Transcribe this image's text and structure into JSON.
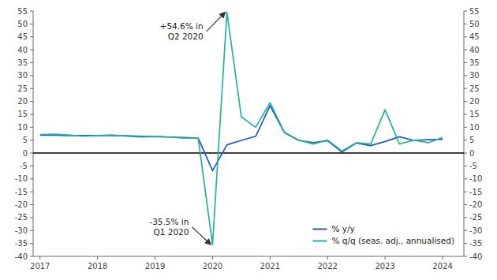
{
  "chart_data": {
    "type": "line",
    "x": [
      2017.0,
      2017.25,
      2017.5,
      2017.75,
      2018.0,
      2018.25,
      2018.5,
      2018.75,
      2019.0,
      2019.25,
      2019.5,
      2019.75,
      2020.0,
      2020.25,
      2020.5,
      2020.75,
      2021.0,
      2021.25,
      2021.5,
      2021.75,
      2022.0,
      2022.25,
      2022.5,
      2022.75,
      2023.0,
      2023.25,
      2023.5,
      2023.75,
      2024.0
    ],
    "series": [
      {
        "name": "% y/y",
        "color": "#1959c8",
        "values": [
          6.9,
          6.9,
          6.8,
          6.8,
          6.8,
          6.8,
          6.7,
          6.5,
          6.4,
          6.2,
          6.0,
          5.8,
          -6.8,
          3.2,
          4.9,
          6.5,
          18.3,
          7.9,
          4.9,
          4.0,
          4.8,
          0.4,
          3.9,
          2.9,
          4.5,
          6.3,
          4.9,
          5.2,
          5.3
        ]
      },
      {
        "name": "% q/q (seas. adj., annualised)",
        "color": "#25b0a0",
        "values": [
          7.2,
          7.3,
          7.0,
          6.5,
          6.8,
          7.0,
          6.5,
          6.2,
          6.4,
          6.2,
          5.8,
          5.8,
          -35.5,
          54.6,
          14.0,
          10.0,
          19.5,
          8.0,
          5.0,
          3.5,
          5.0,
          0.8,
          4.0,
          3.5,
          16.8,
          3.5,
          5.0,
          4.0,
          6.0
        ]
      }
    ],
    "xlim": [
      2016.88,
      2024.37
    ],
    "xticks": [
      2017,
      2018,
      2019,
      2020,
      2021,
      2022,
      2023,
      2024
    ],
    "ylim": [
      -40,
      55
    ],
    "yticks": [
      -40,
      -35,
      -30,
      -25,
      -20,
      -15,
      -10,
      -5,
      0,
      5,
      10,
      15,
      20,
      25,
      30,
      35,
      40,
      45,
      50,
      55
    ],
    "y2lim": [
      -40,
      55
    ],
    "y2ticks": [
      -40,
      -35,
      -30,
      -25,
      -20,
      -15,
      -10,
      -5,
      0,
      5,
      10,
      15,
      20,
      25,
      30,
      35,
      40,
      45,
      50,
      55
    ],
    "grid": false,
    "legend": "lower right",
    "annotations": [
      {
        "text": "+54.6% in\nQ2 2020",
        "x": 2020.25,
        "y": 54.6
      },
      {
        "text": "-35.5% in\nQ1 2020",
        "x": 2020.0,
        "y": -35.5
      }
    ]
  }
}
